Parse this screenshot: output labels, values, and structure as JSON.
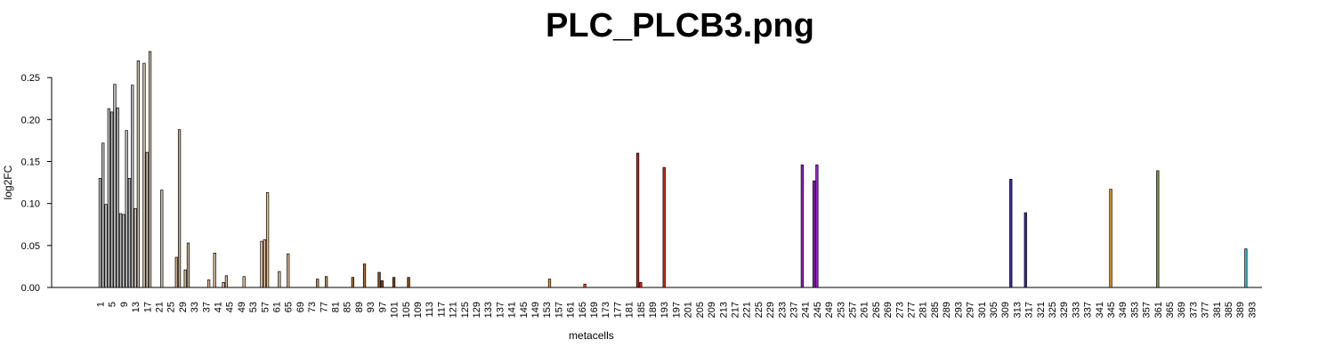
{
  "chart_data": {
    "type": "bar",
    "title": "PLC_PLCB3.png",
    "xlabel": "metacells",
    "ylabel": "log2FC",
    "ylim": [
      0,
      0.3
    ],
    "y_ticks": [
      0.0,
      0.05,
      0.1,
      0.15,
      0.2,
      0.25
    ],
    "y_tick_labels": [
      "0.00",
      "0.05",
      "0.10",
      "0.15",
      "0.20",
      "0.25"
    ],
    "x_range": [
      1,
      396
    ],
    "x_tick_start": 1,
    "x_tick_step": 4,
    "x_tick_end": 393,
    "grid": false,
    "bars": [
      {
        "x": 1,
        "value": 0.13,
        "color": "#bdbdbd"
      },
      {
        "x": 2,
        "value": 0.172,
        "color": "#bdbdbd"
      },
      {
        "x": 3,
        "value": 0.099,
        "color": "#bdbdbd"
      },
      {
        "x": 4,
        "value": 0.213,
        "color": "#bdbdbd"
      },
      {
        "x": 5,
        "value": 0.209,
        "color": "#bdbdbd"
      },
      {
        "x": 6,
        "value": 0.242,
        "color": "#bdbdbd"
      },
      {
        "x": 7,
        "value": 0.214,
        "color": "#bdbdbd"
      },
      {
        "x": 8,
        "value": 0.088,
        "color": "#bdbdbd"
      },
      {
        "x": 9,
        "value": 0.087,
        "color": "#bdbdbd"
      },
      {
        "x": 10,
        "value": 0.187,
        "color": "#bdbdbd"
      },
      {
        "x": 11,
        "value": 0.13,
        "color": "#bdbdbd"
      },
      {
        "x": 12,
        "value": 0.241,
        "color": "#bdbdbd"
      },
      {
        "x": 13,
        "value": 0.094,
        "color": "#c9beaa"
      },
      {
        "x": 14,
        "value": 0.27,
        "color": "#c9beaa"
      },
      {
        "x": 16,
        "value": 0.267,
        "color": "#c9beaa"
      },
      {
        "x": 17,
        "value": 0.161,
        "color": "#c9beaa"
      },
      {
        "x": 18,
        "value": 0.281,
        "color": "#c9beaa"
      },
      {
        "x": 22,
        "value": 0.116,
        "color": "#c9beaa"
      },
      {
        "x": 27,
        "value": 0.036,
        "color": "#c4ae92"
      },
      {
        "x": 28,
        "value": 0.188,
        "color": "#c4ae92"
      },
      {
        "x": 30,
        "value": 0.021,
        "color": "#c4ae92"
      },
      {
        "x": 31,
        "value": 0.053,
        "color": "#c4ae92"
      },
      {
        "x": 38,
        "value": 0.009,
        "color": "#d9b896"
      },
      {
        "x": 40,
        "value": 0.041,
        "color": "#d9b896"
      },
      {
        "x": 43,
        "value": 0.006,
        "color": "#d9b896"
      },
      {
        "x": 44,
        "value": 0.014,
        "color": "#d9b896"
      },
      {
        "x": 50,
        "value": 0.013,
        "color": "#e8c49a"
      },
      {
        "x": 56,
        "value": 0.055,
        "color": "#e8c49a"
      },
      {
        "x": 57,
        "value": 0.057,
        "color": "#e8c49a"
      },
      {
        "x": 58,
        "value": 0.113,
        "color": "#f2c088"
      },
      {
        "x": 62,
        "value": 0.019,
        "color": "#d9b896"
      },
      {
        "x": 65,
        "value": 0.04,
        "color": "#d9b896"
      },
      {
        "x": 75,
        "value": 0.01,
        "color": "#c8915a"
      },
      {
        "x": 78,
        "value": 0.013,
        "color": "#c8915a"
      },
      {
        "x": 87,
        "value": 0.012,
        "color": "#a86b2c"
      },
      {
        "x": 91,
        "value": 0.028,
        "color": "#a86b2c"
      },
      {
        "x": 96,
        "value": 0.018,
        "color": "#8b4a1a"
      },
      {
        "x": 97,
        "value": 0.008,
        "color": "#8b4a1a"
      },
      {
        "x": 101,
        "value": 0.012,
        "color": "#8b4a1a"
      },
      {
        "x": 106,
        "value": 0.012,
        "color": "#8b4a1a"
      },
      {
        "x": 154,
        "value": 0.01,
        "color": "#e89a1a"
      },
      {
        "x": 166,
        "value": 0.004,
        "color": "#e05a1a"
      },
      {
        "x": 184,
        "value": 0.16,
        "color": "#d6261a"
      },
      {
        "x": 185,
        "value": 0.006,
        "color": "#d6261a"
      },
      {
        "x": 193,
        "value": 0.143,
        "color": "#d6261a"
      },
      {
        "x": 240,
        "value": 0.146,
        "color": "#9b1fd1"
      },
      {
        "x": 244,
        "value": 0.127,
        "color": "#9b1fd1"
      },
      {
        "x": 245,
        "value": 0.146,
        "color": "#9b1fd1"
      },
      {
        "x": 311,
        "value": 0.129,
        "color": "#3a2ca8"
      },
      {
        "x": 316,
        "value": 0.089,
        "color": "#3a2ca8"
      },
      {
        "x": 345,
        "value": 0.117,
        "color": "#e0901a"
      },
      {
        "x": 361,
        "value": 0.139,
        "color": "#7d9a3a"
      },
      {
        "x": 391,
        "value": 0.046,
        "color": "#1ec8d8"
      }
    ]
  }
}
